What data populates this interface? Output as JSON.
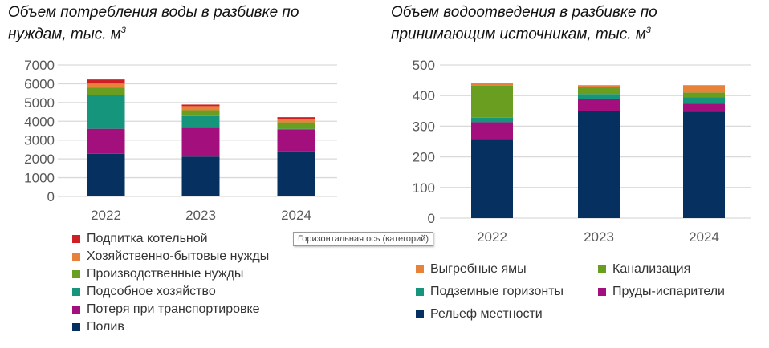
{
  "chart_data": [
    {
      "type": "bar",
      "stacked": true,
      "title": "Объем потребления воды в разбивке по нуждам, тыс. м3",
      "categories": [
        "2022",
        "2023",
        "2024"
      ],
      "ylim": [
        0,
        7000
      ],
      "yticks": [
        0,
        1000,
        2000,
        3000,
        4000,
        5000,
        6000,
        7000
      ],
      "legend_position": "bottom",
      "series": [
        {
          "name": "Полив",
          "color": "#06305f",
          "values": [
            2270,
            2125,
            2395
          ]
        },
        {
          "name": "Потеря при транспортировке",
          "color": "#a30f7d",
          "values": [
            1330,
            1535,
            1165
          ]
        },
        {
          "name": "Подсобное хозяйство",
          "color": "#15957c",
          "values": [
            1795,
            615,
            40
          ]
        },
        {
          "name": "Производственные нужды",
          "color": "#6a9e20",
          "values": [
            405,
            315,
            345
          ]
        },
        {
          "name": "Хозяйственно-бытовые нужды",
          "color": "#e8823a",
          "values": [
            210,
            215,
            170
          ]
        },
        {
          "name": "Подпитка котельной",
          "color": "#cf1f25",
          "values": [
            215,
            85,
            105
          ]
        }
      ]
    },
    {
      "type": "bar",
      "stacked": true,
      "title": "Объем водоотведения в разбивке по принимающим источникам, тыс. м3",
      "categories": [
        "2022",
        "2023",
        "2024"
      ],
      "ylim": [
        0,
        500
      ],
      "yticks": [
        0,
        100,
        200,
        300,
        400,
        500
      ],
      "legend_position": "bottom",
      "series": [
        {
          "name": "Рельеф местности",
          "color": "#06305f",
          "values": [
            258,
            350,
            347
          ]
        },
        {
          "name": "Пруды-испарители",
          "color": "#a30f7d",
          "values": [
            55,
            39,
            27
          ]
        },
        {
          "name": "Подземные горизонты",
          "color": "#15957c",
          "values": [
            15,
            16,
            21
          ]
        },
        {
          "name": "Канализация",
          "color": "#6a9e20",
          "values": [
            104,
            24,
            15
          ]
        },
        {
          "name": "Выгребные ямы",
          "color": "#e8823a",
          "values": [
            8,
            5,
            24
          ]
        }
      ]
    }
  ],
  "titles": {
    "left_l1": "Объем потребления воды в разбивке по",
    "left_l2": "нуждам, тыс. м",
    "left_sup": "3",
    "right_l1": "Объем водоотведения в разбивке по",
    "right_l2": "принимающим источникам, тыс. м",
    "right_sup": "3"
  },
  "tooltip": "Горизонтальная ось (категорий)"
}
